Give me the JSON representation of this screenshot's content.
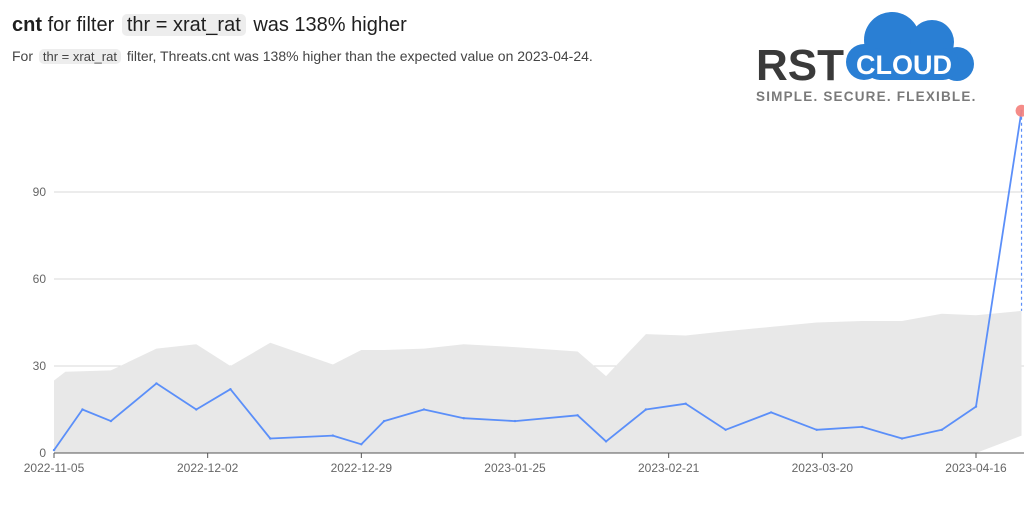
{
  "header": {
    "metric": "cnt",
    "for_filter": "for filter",
    "filter": "thr = xrat_rat",
    "change_text": "was 138% higher",
    "sub_for": "For",
    "sub_filter": "thr = xrat_rat",
    "sub_rest": "filter, Threats.cnt was 138% higher than the expected value on 2023-04-24."
  },
  "logo": {
    "rst": "RST",
    "cloud": "CLOUD",
    "tagline": "SIMPLE. SECURE. FLEXIBLE."
  },
  "colors": {
    "line": "#5b8ff9",
    "band": "#e8e8e8",
    "anomaly": "#f4807b",
    "grid": "#d9d9d9",
    "brand_blue": "#2a7fd4"
  },
  "chart_data": {
    "type": "line",
    "title": "",
    "xlabel": "",
    "ylabel": "",
    "ylim": [
      0,
      120
    ],
    "y_ticks": [
      0,
      30,
      60,
      90
    ],
    "x_tick_labels": [
      "2022-11-05",
      "2022-12-02",
      "2022-12-29",
      "2023-01-25",
      "2023-02-21",
      "2023-03-20",
      "2023-04-16"
    ],
    "x_tick_dates": [
      "2022-11-05",
      "2022-12-02",
      "2022-12-29",
      "2023-01-25",
      "2023-02-21",
      "2023-03-20",
      "2023-04-16"
    ],
    "x_dates": [
      "2022-11-05",
      "2022-11-10",
      "2022-11-15",
      "2022-11-23",
      "2022-11-30",
      "2022-12-06",
      "2022-12-13",
      "2022-12-24",
      "2022-12-29",
      "2023-01-02",
      "2023-01-09",
      "2023-01-16",
      "2023-01-25",
      "2023-02-05",
      "2023-02-10",
      "2023-02-17",
      "2023-02-24",
      "2023-03-03",
      "2023-03-11",
      "2023-03-19",
      "2023-03-27",
      "2023-04-03",
      "2023-04-10",
      "2023-04-16",
      "2023-04-24"
    ],
    "series": [
      {
        "values": [
          1,
          15,
          11,
          24,
          15,
          22,
          5,
          6,
          3,
          11,
          15,
          12,
          11,
          13,
          4,
          15,
          17,
          8,
          14,
          8,
          9,
          5,
          8,
          16,
          118
        ]
      }
    ],
    "expected_band": {
      "x_dates": [
        "2022-11-05",
        "2022-11-07",
        "2022-11-15",
        "2022-11-23",
        "2022-11-30",
        "2022-12-06",
        "2022-12-13",
        "2022-12-24",
        "2022-12-29",
        "2023-01-02",
        "2023-01-09",
        "2023-01-16",
        "2023-01-25",
        "2023-02-05",
        "2023-02-10",
        "2023-02-17",
        "2023-02-24",
        "2023-03-03",
        "2023-03-11",
        "2023-03-19",
        "2023-03-27",
        "2023-04-03",
        "2023-04-10",
        "2023-04-16",
        "2023-04-24"
      ],
      "upper": [
        25,
        28,
        28.5,
        36,
        37.5,
        30,
        38,
        30.5,
        35.5,
        35.5,
        36,
        37.5,
        36.5,
        35,
        26.5,
        41,
        40.5,
        42,
        43.5,
        45,
        45.5,
        45.5,
        48,
        47.5,
        49
      ],
      "lower": [
        0,
        0,
        0,
        0,
        0,
        0,
        0,
        0,
        0,
        0,
        0,
        0,
        0,
        0,
        0,
        0,
        0,
        0,
        0,
        0,
        0,
        0,
        0,
        0,
        6
      ]
    },
    "anomaly": {
      "date": "2023-04-24",
      "value": 118
    },
    "grid": true
  }
}
